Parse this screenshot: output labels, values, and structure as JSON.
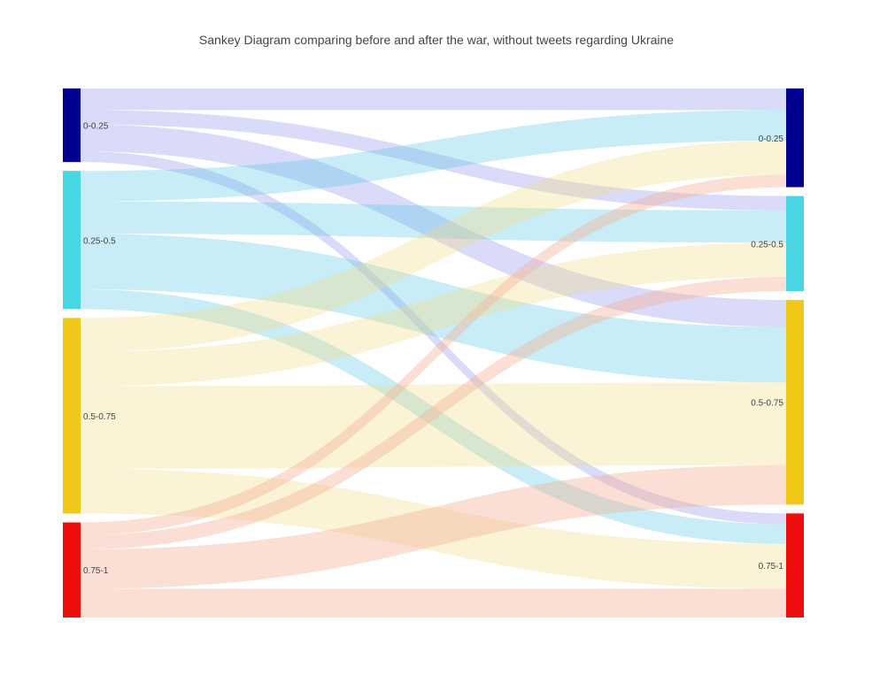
{
  "chart_data": {
    "type": "sankey",
    "title": "Sankey Diagram comparing before and after the war, without tweets regarding Ukraine",
    "nodes": [
      {
        "id": "L0",
        "label": "0-0.25",
        "side": "left",
        "color": "#00008f",
        "value": 41
      },
      {
        "id": "L1",
        "label": "0.25-0.5",
        "side": "left",
        "color": "#48d6e4",
        "value": 77
      },
      {
        "id": "L2",
        "label": "0.5-0.75",
        "side": "left",
        "color": "#f0c818",
        "value": 109
      },
      {
        "id": "L3",
        "label": "0.75-1",
        "side": "left",
        "color": "#ee0d0d",
        "value": 53
      },
      {
        "id": "R0",
        "label": "0-0.25",
        "side": "right",
        "color": "#00008f",
        "value": 55
      },
      {
        "id": "R1",
        "label": "0.25-0.5",
        "side": "right",
        "color": "#48d6e4",
        "value": 53
      },
      {
        "id": "R2",
        "label": "0.5-0.75",
        "side": "right",
        "color": "#f0c818",
        "value": 114
      },
      {
        "id": "R3",
        "label": "0.75-1",
        "side": "right",
        "color": "#ee0d0d",
        "value": 58
      }
    ],
    "links": [
      {
        "source": "L0",
        "target": "R0",
        "value": 12,
        "color": "rgba(140,140,235,0.32)"
      },
      {
        "source": "L0",
        "target": "R1",
        "value": 8,
        "color": "rgba(140,140,235,0.32)"
      },
      {
        "source": "L0",
        "target": "R2",
        "value": 15,
        "color": "rgba(140,140,235,0.32)"
      },
      {
        "source": "L0",
        "target": "R3",
        "value": 6,
        "color": "rgba(140,140,235,0.32)"
      },
      {
        "source": "L1",
        "target": "R0",
        "value": 17,
        "color": "rgba(75,195,225,0.30)"
      },
      {
        "source": "L1",
        "target": "R1",
        "value": 18,
        "color": "rgba(75,195,225,0.30)"
      },
      {
        "source": "L1",
        "target": "R2",
        "value": 31,
        "color": "rgba(75,195,225,0.30)"
      },
      {
        "source": "L1",
        "target": "R3",
        "value": 11,
        "color": "rgba(75,195,225,0.30)"
      },
      {
        "source": "L2",
        "target": "R0",
        "value": 19,
        "color": "rgba(242,222,135,0.35)"
      },
      {
        "source": "L2",
        "target": "R1",
        "value": 19,
        "color": "rgba(242,222,135,0.35)"
      },
      {
        "source": "L2",
        "target": "R2",
        "value": 46,
        "color": "rgba(242,222,135,0.35)"
      },
      {
        "source": "L2",
        "target": "R3",
        "value": 25,
        "color": "rgba(242,222,135,0.35)"
      },
      {
        "source": "L3",
        "target": "R0",
        "value": 7,
        "color": "rgba(245,175,150,0.40)"
      },
      {
        "source": "L3",
        "target": "R1",
        "value": 8,
        "color": "rgba(245,175,150,0.40)"
      },
      {
        "source": "L3",
        "target": "R2",
        "value": 22,
        "color": "rgba(245,175,150,0.40)"
      },
      {
        "source": "L3",
        "target": "R3",
        "value": 16,
        "color": "rgba(245,175,150,0.40)"
      }
    ]
  }
}
